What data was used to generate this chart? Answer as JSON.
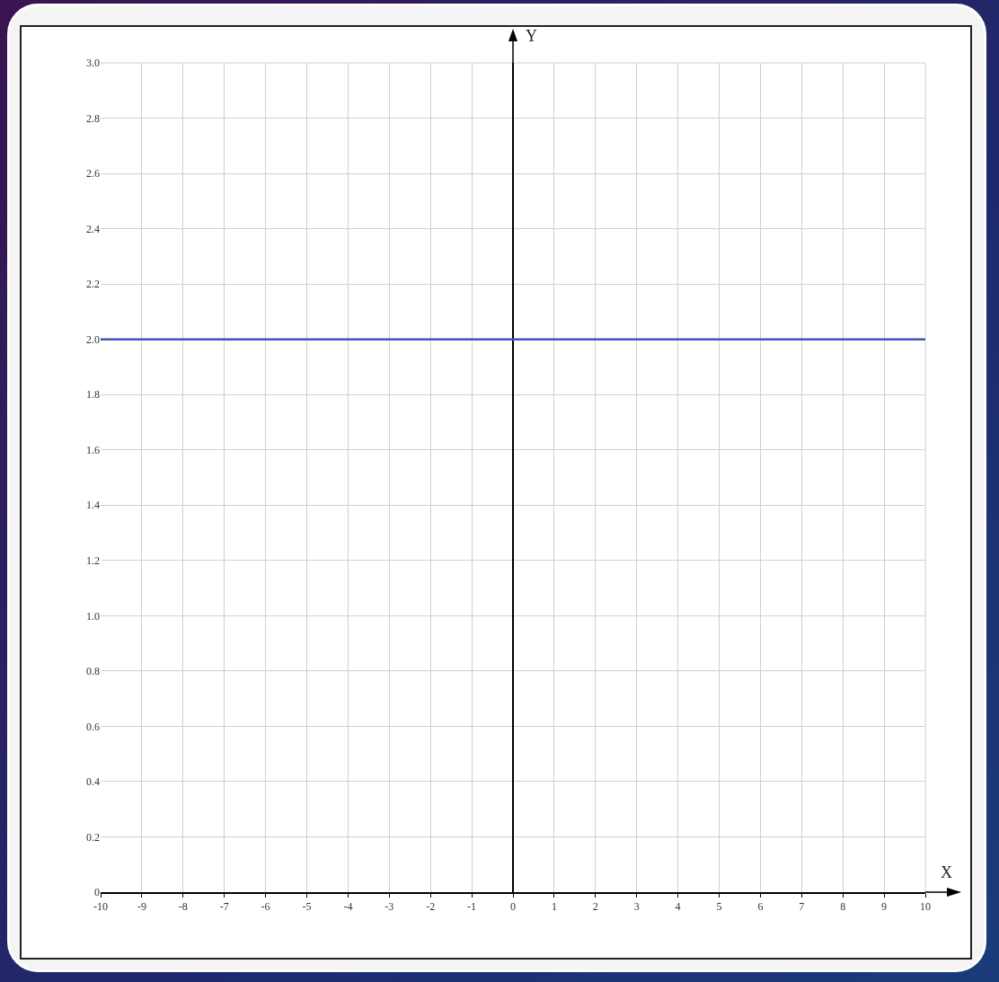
{
  "chart_data": {
    "type": "line",
    "xlabel": "X",
    "ylabel": "Y",
    "x": [
      -10,
      10
    ],
    "series": [
      {
        "color": "#3a56b8",
        "values": [
          2,
          2
        ]
      }
    ],
    "xlim": [
      -10,
      10
    ],
    "xticks": [
      -10,
      -9,
      -8,
      -7,
      -6,
      -5,
      -4,
      -3,
      -2,
      -1,
      0,
      1,
      2,
      3,
      4,
      5,
      6,
      7,
      8,
      9,
      10
    ],
    "ylim": [
      0,
      3
    ],
    "yticks": [
      0,
      0.2,
      0.4,
      0.6,
      0.8,
      {
        "value": 1,
        "label": "1.0"
      },
      1.2,
      1.4,
      1.6,
      1.8,
      {
        "value": 2,
        "label": "2.0"
      },
      2.2,
      2.4,
      2.6,
      2.8,
      {
        "value": 3,
        "label": "3.0"
      }
    ],
    "grid": true,
    "legend": false,
    "marker": "none",
    "line_style": "solid"
  }
}
